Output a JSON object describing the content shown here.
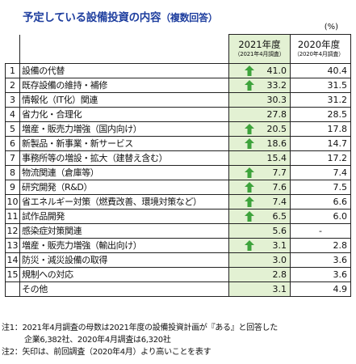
{
  "header": {
    "title": "予定している設備投資の内容",
    "subtitle": "（複数回答）",
    "unit": "(%)"
  },
  "columns": {
    "y2021": {
      "year": "2021年度",
      "survey": "（2021年4月調査）"
    },
    "y2020": {
      "year": "2020年度",
      "survey": "（2020年4月調査）"
    }
  },
  "rows": [
    {
      "no": "1",
      "label": "設備の代替",
      "v2021": "41.0",
      "v2020": "40.4",
      "up": true
    },
    {
      "no": "2",
      "label": "既存設備の維持・補修",
      "v2021": "33.2",
      "v2020": "31.5",
      "up": true
    },
    {
      "no": "3",
      "label": "情報化（IT化）関連",
      "v2021": "30.3",
      "v2020": "31.2",
      "up": false
    },
    {
      "no": "4",
      "label": "省力化・合理化",
      "v2021": "27.8",
      "v2020": "28.5",
      "up": false
    },
    {
      "no": "5",
      "label": "増産・販売力増強（国内向け）",
      "v2021": "20.5",
      "v2020": "17.8",
      "up": true
    },
    {
      "no": "6",
      "label": "新製品・新事業・新サービス",
      "v2021": "18.6",
      "v2020": "14.7",
      "up": true
    },
    {
      "no": "7",
      "label": "事務所等の増設・拡大（建替え含む）",
      "v2021": "15.4",
      "v2020": "17.2",
      "up": false
    },
    {
      "no": "8",
      "label": "物流関連（倉庫等）",
      "v2021": "7.7",
      "v2020": "7.4",
      "up": true
    },
    {
      "no": "9",
      "label": "研究開発（R&D）",
      "v2021": "7.6",
      "v2020": "7.5",
      "up": true
    },
    {
      "no": "10",
      "label": "省エネルギー対策（燃費改善、環境対策など）",
      "v2021": "7.4",
      "v2020": "6.6",
      "up": true
    },
    {
      "no": "11",
      "label": "試作品開発",
      "v2021": "6.5",
      "v2020": "6.0",
      "up": true
    },
    {
      "no": "12",
      "label": "感染症対策関連",
      "v2021": "5.6",
      "v2020": "-",
      "up": false
    },
    {
      "no": "13",
      "label": "増産・販売力増強（輸出向け）",
      "v2021": "3.1",
      "v2020": "2.8",
      "up": true
    },
    {
      "no": "14",
      "label": "防災・減災設備の取得",
      "v2021": "3.0",
      "v2020": "3.6",
      "up": false
    },
    {
      "no": "15",
      "label": "規制への対応",
      "v2021": "2.8",
      "v2020": "3.6",
      "up": false
    },
    {
      "no": "",
      "label": "その他",
      "v2021": "3.1",
      "v2020": "4.9",
      "up": false
    }
  ],
  "notes": {
    "note1_line1": "注1：2021年4月調査の母数は2021年度の設備投資計画が『ある』と回答した",
    "note1_line2": "企業6,382社、2020年4月調査は6,320社",
    "note2": "注2：矢印は、前回調査（2020年4月）より高いことを表す"
  },
  "colors": {
    "title": "#1f3f9f",
    "highlight_column": "#e3f1d3",
    "arrow": "#3ea33c"
  },
  "icons": {
    "increase": "up-arrow-icon"
  }
}
